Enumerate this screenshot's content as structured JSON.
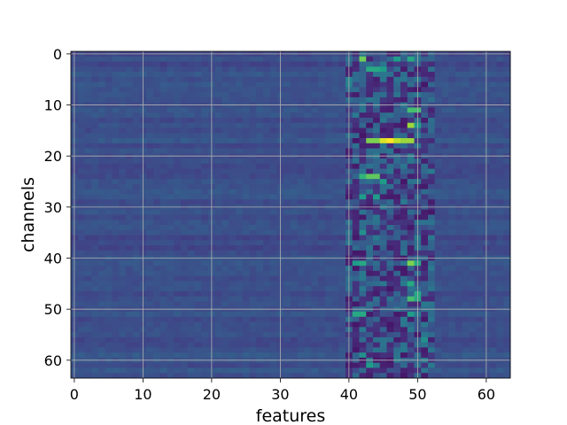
{
  "chart_data": {
    "type": "heatmap",
    "title": "",
    "xlabel": "features",
    "ylabel": "channels",
    "x_ticks": [
      0,
      10,
      20,
      30,
      40,
      50,
      60
    ],
    "y_ticks": [
      0,
      10,
      20,
      30,
      40,
      50,
      60
    ],
    "xlim": [
      -0.5,
      63.5
    ],
    "ylim": [
      63.5,
      -0.5
    ],
    "rows": 64,
    "cols": 64,
    "y_inverted": true,
    "grid": true,
    "colormap": "viridis",
    "colormap_stops": [
      "#440154",
      "#482878",
      "#3e4989",
      "#31688e",
      "#26828e",
      "#1f9e89",
      "#35b779",
      "#6ece58",
      "#b5de2b",
      "#fde725"
    ],
    "background_value": 0.24,
    "hotspots": [
      {
        "row": 1,
        "col": 42,
        "value": 0.78
      },
      {
        "row": 1,
        "col": 47,
        "value": 0.55
      },
      {
        "row": 1,
        "col": 49,
        "value": 0.6
      },
      {
        "row": 3,
        "col": 43,
        "value": 0.6
      },
      {
        "row": 3,
        "col": 44,
        "value": 0.6
      },
      {
        "row": 3,
        "col": 45,
        "value": 0.55
      },
      {
        "row": 5,
        "col": 40,
        "value": 0.45
      },
      {
        "row": 6,
        "col": 40,
        "value": 0.45
      },
      {
        "row": 11,
        "col": 49,
        "value": 0.7
      },
      {
        "row": 11,
        "col": 50,
        "value": 0.7
      },
      {
        "row": 14,
        "col": 49,
        "value": 0.85
      },
      {
        "row": 14,
        "col": 50,
        "value": 0.55
      },
      {
        "row": 17,
        "col": 43,
        "value": 0.8
      },
      {
        "row": 17,
        "col": 44,
        "value": 0.8
      },
      {
        "row": 17,
        "col": 45,
        "value": 0.95
      },
      {
        "row": 17,
        "col": 46,
        "value": 1.0
      },
      {
        "row": 17,
        "col": 47,
        "value": 0.9
      },
      {
        "row": 17,
        "col": 48,
        "value": 0.85
      },
      {
        "row": 17,
        "col": 49,
        "value": 0.85
      },
      {
        "row": 24,
        "col": 42,
        "value": 0.65
      },
      {
        "row": 24,
        "col": 43,
        "value": 0.75
      },
      {
        "row": 24,
        "col": 44,
        "value": 0.75
      },
      {
        "row": 25,
        "col": 45,
        "value": 0.55
      },
      {
        "row": 28,
        "col": 42,
        "value": 0.55
      },
      {
        "row": 28,
        "col": 44,
        "value": 0.55
      },
      {
        "row": 35,
        "col": 42,
        "value": 0.5
      },
      {
        "row": 41,
        "col": 41,
        "value": 0.55
      },
      {
        "row": 41,
        "col": 42,
        "value": 0.6
      },
      {
        "row": 41,
        "col": 49,
        "value": 0.8
      },
      {
        "row": 41,
        "col": 50,
        "value": 0.6
      },
      {
        "row": 45,
        "col": 49,
        "value": 0.6
      },
      {
        "row": 47,
        "col": 50,
        "value": 0.6
      },
      {
        "row": 48,
        "col": 49,
        "value": 0.7
      },
      {
        "row": 48,
        "col": 50,
        "value": 0.6
      },
      {
        "row": 51,
        "col": 41,
        "value": 0.6
      },
      {
        "row": 51,
        "col": 42,
        "value": 0.6
      },
      {
        "row": 51,
        "col": 49,
        "value": 0.55
      },
      {
        "row": 56,
        "col": 51,
        "value": 0.5
      },
      {
        "row": 59,
        "col": 42,
        "value": 0.5
      },
      {
        "row": 61,
        "col": 43,
        "value": 0.55
      }
    ]
  }
}
